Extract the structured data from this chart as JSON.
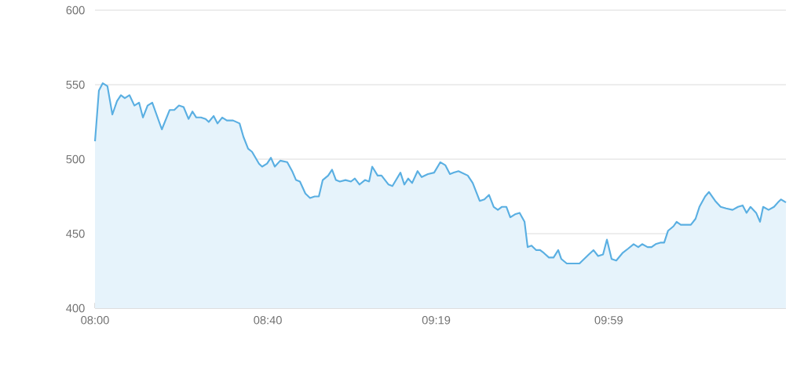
{
  "chart_data": {
    "type": "area",
    "x": [
      8.0,
      8.015,
      8.03,
      8.048,
      8.067,
      8.085,
      8.1,
      8.115,
      8.133,
      8.152,
      8.17,
      8.185,
      8.203,
      8.221,
      8.258,
      8.288,
      8.306,
      8.324,
      8.342,
      8.361,
      8.376,
      8.391,
      8.409,
      8.427,
      8.439,
      8.458,
      8.473,
      8.491,
      8.509,
      8.533,
      8.558,
      8.573,
      8.591,
      8.606,
      8.633,
      8.645,
      8.664,
      8.679,
      8.694,
      8.715,
      8.742,
      8.761,
      8.776,
      8.791,
      8.812,
      8.83,
      8.848,
      8.864,
      8.879,
      8.9,
      8.915,
      8.93,
      8.945,
      8.967,
      8.988,
      9.003,
      9.021,
      9.042,
      9.058,
      9.07,
      9.091,
      9.106,
      9.133,
      9.148,
      9.179,
      9.194,
      9.209,
      9.224,
      9.245,
      9.261,
      9.285,
      9.309,
      9.333,
      9.352,
      9.37,
      9.385,
      9.403,
      9.439,
      9.458,
      9.485,
      9.503,
      9.521,
      9.539,
      9.555,
      9.57,
      9.588,
      9.603,
      9.621,
      9.639,
      9.658,
      9.67,
      9.685,
      9.703,
      9.718,
      9.733,
      9.752,
      9.77,
      9.788,
      9.8,
      9.821,
      9.839,
      9.87,
      9.888,
      9.906,
      9.924,
      9.942,
      9.961,
      9.976,
      9.994,
      10.012,
      10.036,
      10.058,
      10.079,
      10.097,
      10.112,
      10.133,
      10.148,
      10.164,
      10.182,
      10.197,
      10.212,
      10.233,
      10.245,
      10.261,
      10.285,
      10.3,
      10.318,
      10.333,
      10.355,
      10.37,
      10.394,
      10.415,
      10.436,
      10.461,
      10.482,
      10.5,
      10.515,
      10.53,
      10.552,
      10.567,
      10.579,
      10.6,
      10.621,
      10.636,
      10.648,
      10.667
    ],
    "series": [
      {
        "color": "#5aafe2",
        "values": [
          512,
          546,
          551,
          549,
          530,
          539,
          543,
          541,
          543,
          536,
          538,
          528,
          536,
          538,
          520,
          533,
          533,
          536,
          535,
          527,
          532,
          528,
          528,
          527,
          525,
          529,
          524,
          528,
          526,
          526,
          524,
          515,
          507,
          505,
          497,
          495,
          497,
          501,
          495,
          499,
          498,
          492,
          486,
          485,
          477,
          474,
          475,
          475,
          486,
          489,
          493,
          486,
          485,
          486,
          485,
          487,
          483,
          486,
          485,
          495,
          489,
          489,
          483,
          482,
          491,
          483,
          487,
          484,
          492,
          488,
          490,
          491,
          498,
          496,
          490,
          491,
          492,
          489,
          484,
          472,
          473,
          476,
          468,
          466,
          468,
          468,
          461,
          463,
          464,
          458,
          441,
          442,
          439,
          439,
          437,
          434,
          434,
          439,
          433,
          430,
          430,
          430,
          433,
          436,
          439,
          435,
          436,
          446,
          433,
          432,
          437,
          440,
          443,
          441,
          443,
          441,
          441,
          443,
          444,
          444,
          452,
          455,
          458,
          456,
          456,
          456,
          460,
          468,
          475,
          478,
          472,
          468,
          467,
          466,
          468,
          469,
          464,
          468,
          464,
          458,
          468,
          466,
          468,
          471,
          473,
          471
        ]
      }
    ],
    "xlim": [
      8,
      10.667
    ],
    "xticks": [
      {
        "value": 8,
        "label": "08:00"
      },
      {
        "value": 8.667,
        "label": "08:40"
      },
      {
        "value": 9.317,
        "label": "09:19"
      },
      {
        "value": 9.983,
        "label": "09:59"
      }
    ],
    "ylim": [
      400,
      600
    ],
    "yticks": [
      400,
      450,
      500,
      550,
      600
    ],
    "grid": "y",
    "marker": "none",
    "line_style": "solid"
  }
}
